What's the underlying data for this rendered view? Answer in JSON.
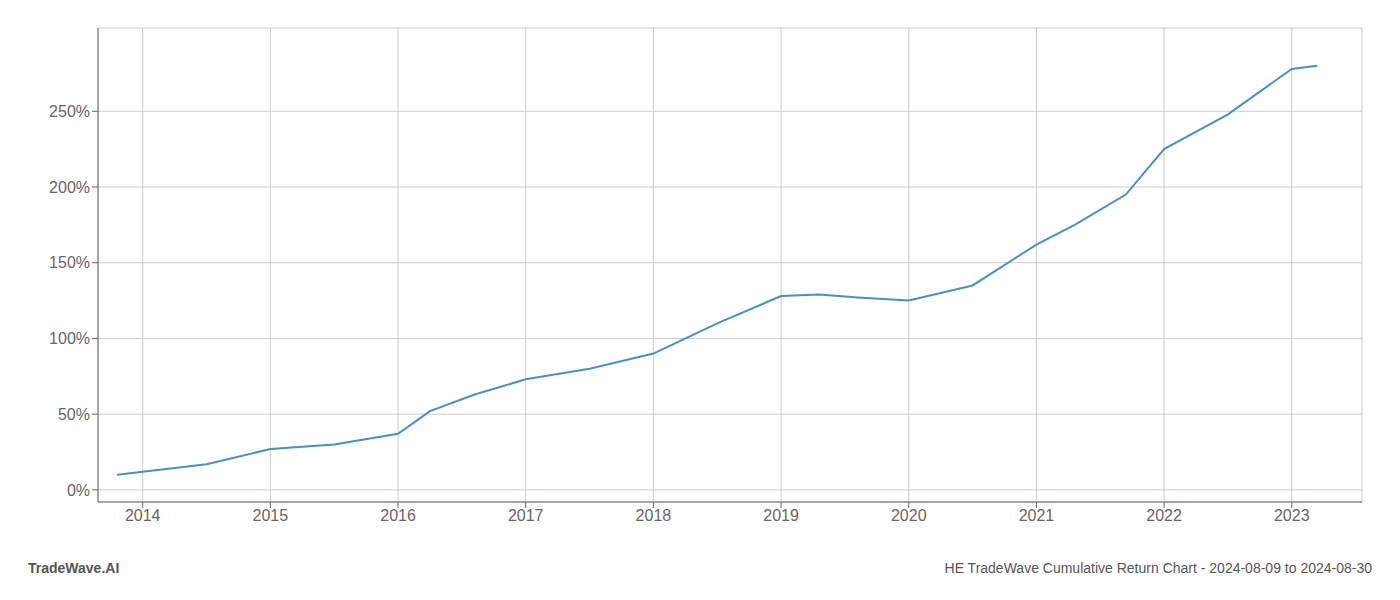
{
  "chart_data": {
    "type": "line",
    "title": "HE TradeWave Cumulative Return Chart - 2024-08-09 to 2024-08-30",
    "annotations": [
      "TradeWave.AI"
    ],
    "x": [
      2013.8,
      2014,
      2014.5,
      2015,
      2015.5,
      2016,
      2016.25,
      2016.6,
      2017,
      2017.5,
      2018,
      2018.5,
      2019,
      2019.3,
      2019.6,
      2020,
      2020.5,
      2021,
      2021.3,
      2021.7,
      2022,
      2022.5,
      2023,
      2023.2
    ],
    "values": [
      10,
      12,
      17,
      27,
      30,
      37,
      52,
      63,
      73,
      80,
      90,
      110,
      128,
      129,
      127,
      125,
      135,
      162,
      175,
      195,
      225,
      248,
      278,
      280
    ],
    "color": "#4a90c4",
    "xlim": [
      2013.65,
      2023.55
    ],
    "xticks": [
      2014,
      2015,
      2016,
      2017,
      2018,
      2019,
      2020,
      2021,
      2022,
      2023
    ],
    "ylim": [
      -8,
      305
    ],
    "yticks": [
      {
        "value": 0,
        "label": "0%"
      },
      {
        "value": 50,
        "label": "50%"
      },
      {
        "value": 100,
        "label": "100%"
      },
      {
        "value": 150,
        "label": "150%"
      },
      {
        "value": 200,
        "label": "200%"
      },
      {
        "value": 250,
        "label": "250%"
      }
    ],
    "grid": true
  }
}
